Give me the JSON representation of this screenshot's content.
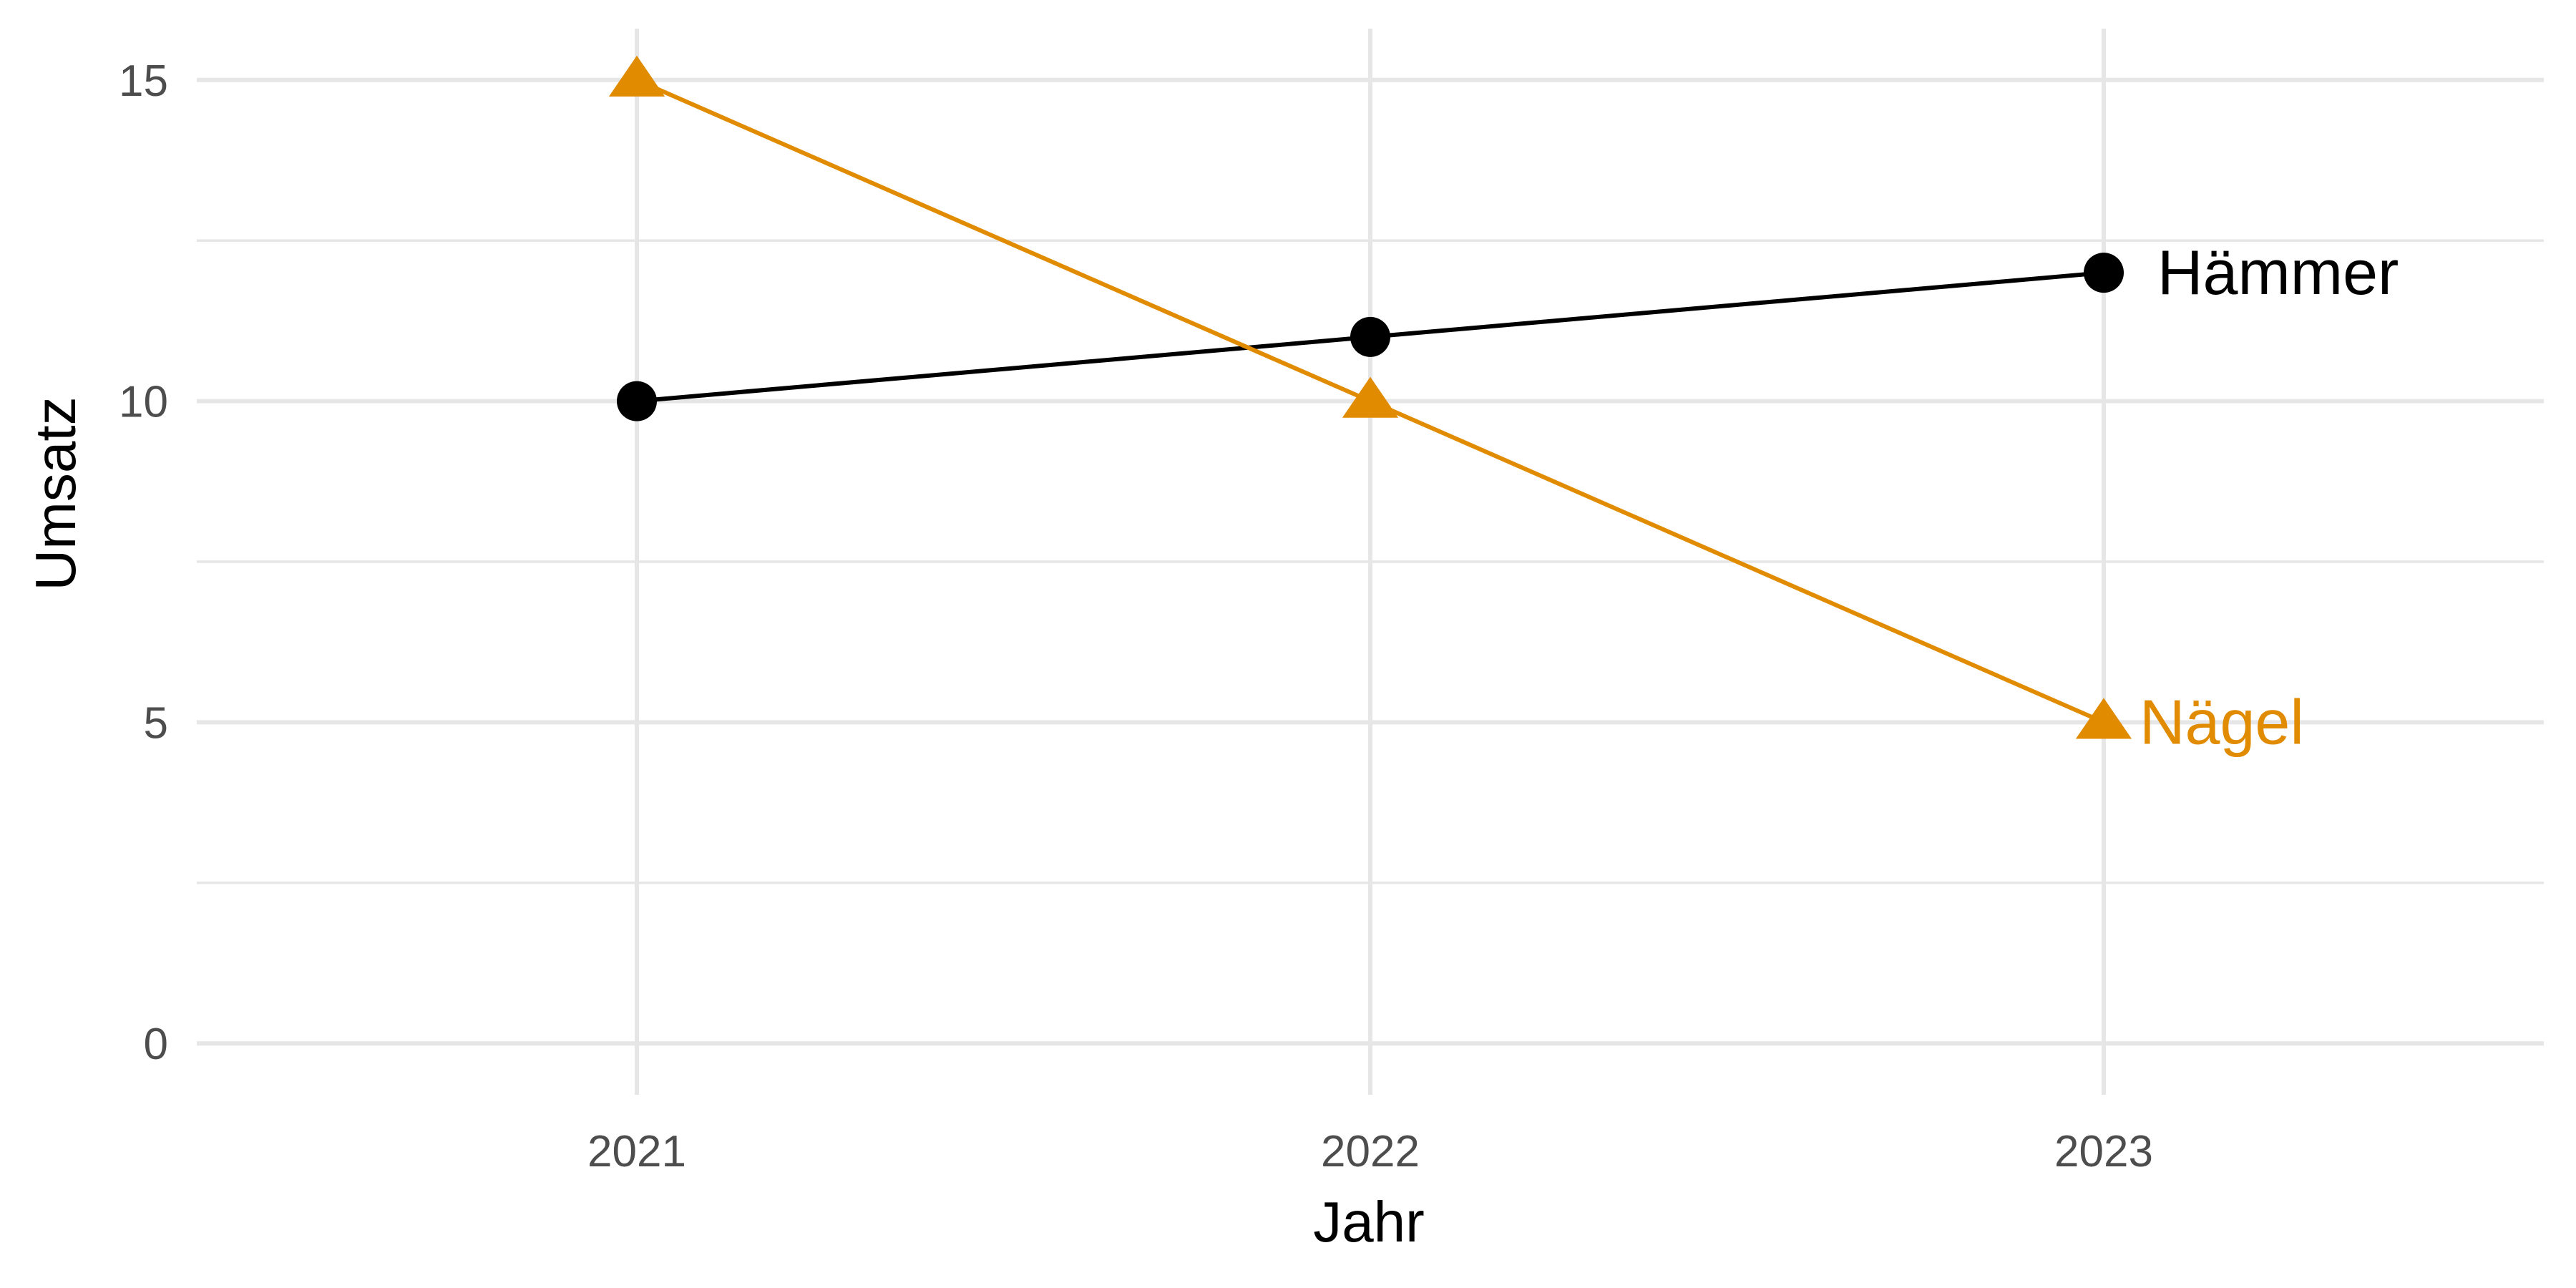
{
  "chart_data": {
    "type": "line",
    "xlabel": "Jahr",
    "ylabel": "Umsatz",
    "x": [
      "2021",
      "2022",
      "2023"
    ],
    "xlim": [
      2020.4,
      2023.6
    ],
    "ylim": [
      -0.8,
      15.8
    ],
    "y_ticks": [
      "0",
      "5",
      "10",
      "15"
    ],
    "y_minor": [
      2.5,
      7.5,
      12.5
    ],
    "grid": true,
    "legend": "none",
    "series": [
      {
        "name": "Hämmer",
        "values": [
          10,
          11,
          12
        ],
        "color": "#000000",
        "marker": "circle"
      },
      {
        "name": "Nägel",
        "values": [
          15,
          10,
          5
        ],
        "color": "#E08B00",
        "marker": "triangle"
      }
    ]
  }
}
